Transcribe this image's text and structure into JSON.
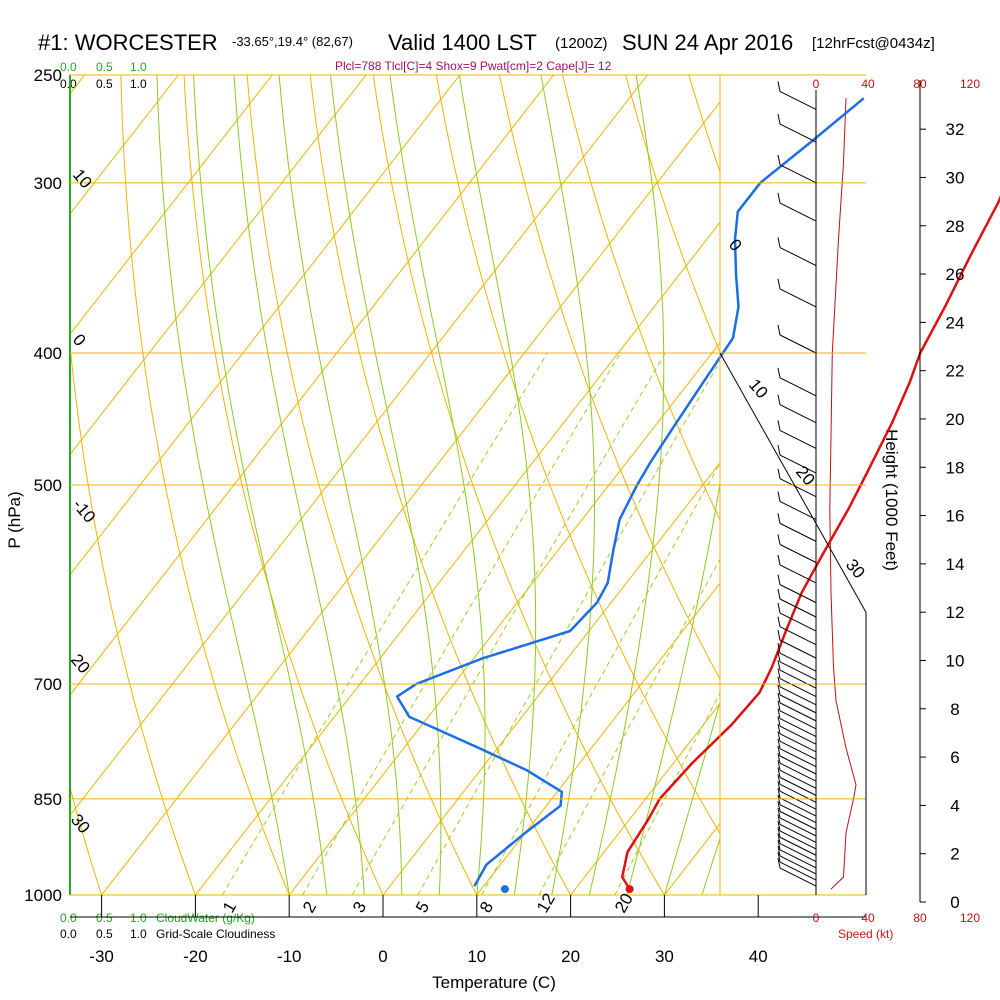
{
  "header": {
    "station": "#1: WORCESTER",
    "coords": "-33.65°,19.4° (82,67)",
    "valid": "Valid 1400 LST",
    "zulu": "(1200Z)",
    "date": "SUN 24 Apr 2016",
    "forecast": "[12hrFcst@0434z]",
    "indices": "Plcl=788 Tlcl[C]=4 Shox=9 Pwat[cm]=2 Cape[J]= 12"
  },
  "cloud_scale": {
    "top_green": [
      "0.0",
      "0.5",
      "1.0"
    ],
    "top_black": [
      "0.0",
      "0.5",
      "1.0"
    ],
    "bottom_green": [
      "0.0",
      "0.5",
      "1.0"
    ],
    "bottom_green_label": "CloudWater (g/Kg)",
    "bottom_black": [
      "0.0",
      "0.5",
      "1.0"
    ],
    "bottom_black_label": "Grid-Scale Cloudiness"
  },
  "colors": {
    "isobar": "#f0b400",
    "dry_adiabat": "#f0b400",
    "moist_adiabat": "#8ccc1e",
    "mixing_ratio": "#a0cc28",
    "temperature": "#e01010",
    "dewpoint": "#1a6ee6",
    "speed": "#c01010",
    "cloud_green": "#22aa22"
  },
  "chart_data": {
    "type": "line",
    "xlabel": "Temperature (C)",
    "ylabel": "P (hPa)",
    "right_label": "Height (1000 Feet)",
    "xlim": [
      -35,
      36
    ],
    "ylim": [
      1000,
      250
    ],
    "x_ticks": [
      -30,
      -20,
      -10,
      0,
      10,
      20,
      30,
      40
    ],
    "p_ticks": [
      250,
      300,
      400,
      500,
      700,
      850,
      1000
    ],
    "height_ticks": [
      0,
      2,
      4,
      6,
      8,
      10,
      12,
      14,
      16,
      18,
      20,
      22,
      24,
      26,
      28,
      30,
      32
    ],
    "speed_ticks_top": [
      "0",
      "40",
      "80",
      "120"
    ],
    "speed_ticks_bottom": [
      "0",
      "40",
      "80",
      "120"
    ],
    "speed_label": "Speed (kt)",
    "dry_adiabat_labels": [
      "-10",
      "0",
      "10",
      "20",
      "30",
      "0",
      "10",
      "20",
      "30"
    ],
    "mixing_ratio_labels": [
      "1",
      "2",
      "3",
      "5",
      "8",
      "12",
      "20"
    ],
    "series": [
      {
        "name": "temperature",
        "points": [
          [
            25.8,
            990
          ],
          [
            24,
            970
          ],
          [
            22.5,
            930
          ],
          [
            22,
            880
          ],
          [
            21.5,
            850
          ],
          [
            22,
            800
          ],
          [
            23,
            750
          ],
          [
            23.3,
            710
          ],
          [
            22.5,
            680
          ],
          [
            21,
            640
          ],
          [
            19.5,
            600
          ],
          [
            18.5,
            560
          ],
          [
            17.5,
            520
          ],
          [
            16.5,
            490
          ],
          [
            15,
            450
          ],
          [
            13.5,
            420
          ],
          [
            12.2,
            400
          ],
          [
            11,
            370
          ],
          [
            9.5,
            340
          ],
          [
            8,
            310
          ],
          [
            6.5,
            290
          ],
          [
            4.5,
            260
          ]
        ]
      },
      {
        "name": "dewpoint",
        "points": [
          [
            9,
            985
          ],
          [
            8.5,
            950
          ],
          [
            10,
            900
          ],
          [
            11.5,
            860
          ],
          [
            10.5,
            840
          ],
          [
            5,
            810
          ],
          [
            -2,
            780
          ],
          [
            -12,
            740
          ],
          [
            -15,
            715
          ],
          [
            -14,
            700
          ],
          [
            -9,
            670
          ],
          [
            -2,
            640
          ],
          [
            -1.5,
            610
          ],
          [
            -2,
            590
          ],
          [
            -4,
            560
          ],
          [
            -6,
            530
          ],
          [
            -7,
            500
          ],
          [
            -7.5,
            480
          ],
          [
            -8,
            450
          ],
          [
            -8.5,
            420
          ],
          [
            -9,
            390
          ],
          [
            -11,
            370
          ],
          [
            -14,
            350
          ],
          [
            -17,
            330
          ],
          [
            -19,
            315
          ],
          [
            -19,
            300
          ],
          [
            -17,
            280
          ],
          [
            -15,
            260
          ]
        ]
      },
      {
        "name": "surface-dewpoint",
        "points": [
          [
            12.5,
            990
          ]
        ]
      },
      {
        "name": "surface-temperature",
        "points": [
          [
            25.8,
            990
          ]
        ]
      }
    ],
    "wind_speed_kt": [
      [
        12,
        990
      ],
      [
        22,
        970
      ],
      [
        24,
        900
      ],
      [
        30,
        850
      ],
      [
        32,
        830
      ],
      [
        24,
        780
      ],
      [
        16,
        720
      ],
      [
        14,
        680
      ],
      [
        12,
        600
      ],
      [
        11,
        520
      ],
      [
        12,
        460
      ],
      [
        13,
        400
      ],
      [
        18,
        330
      ],
      [
        22,
        290
      ],
      [
        24,
        260
      ]
    ]
  }
}
